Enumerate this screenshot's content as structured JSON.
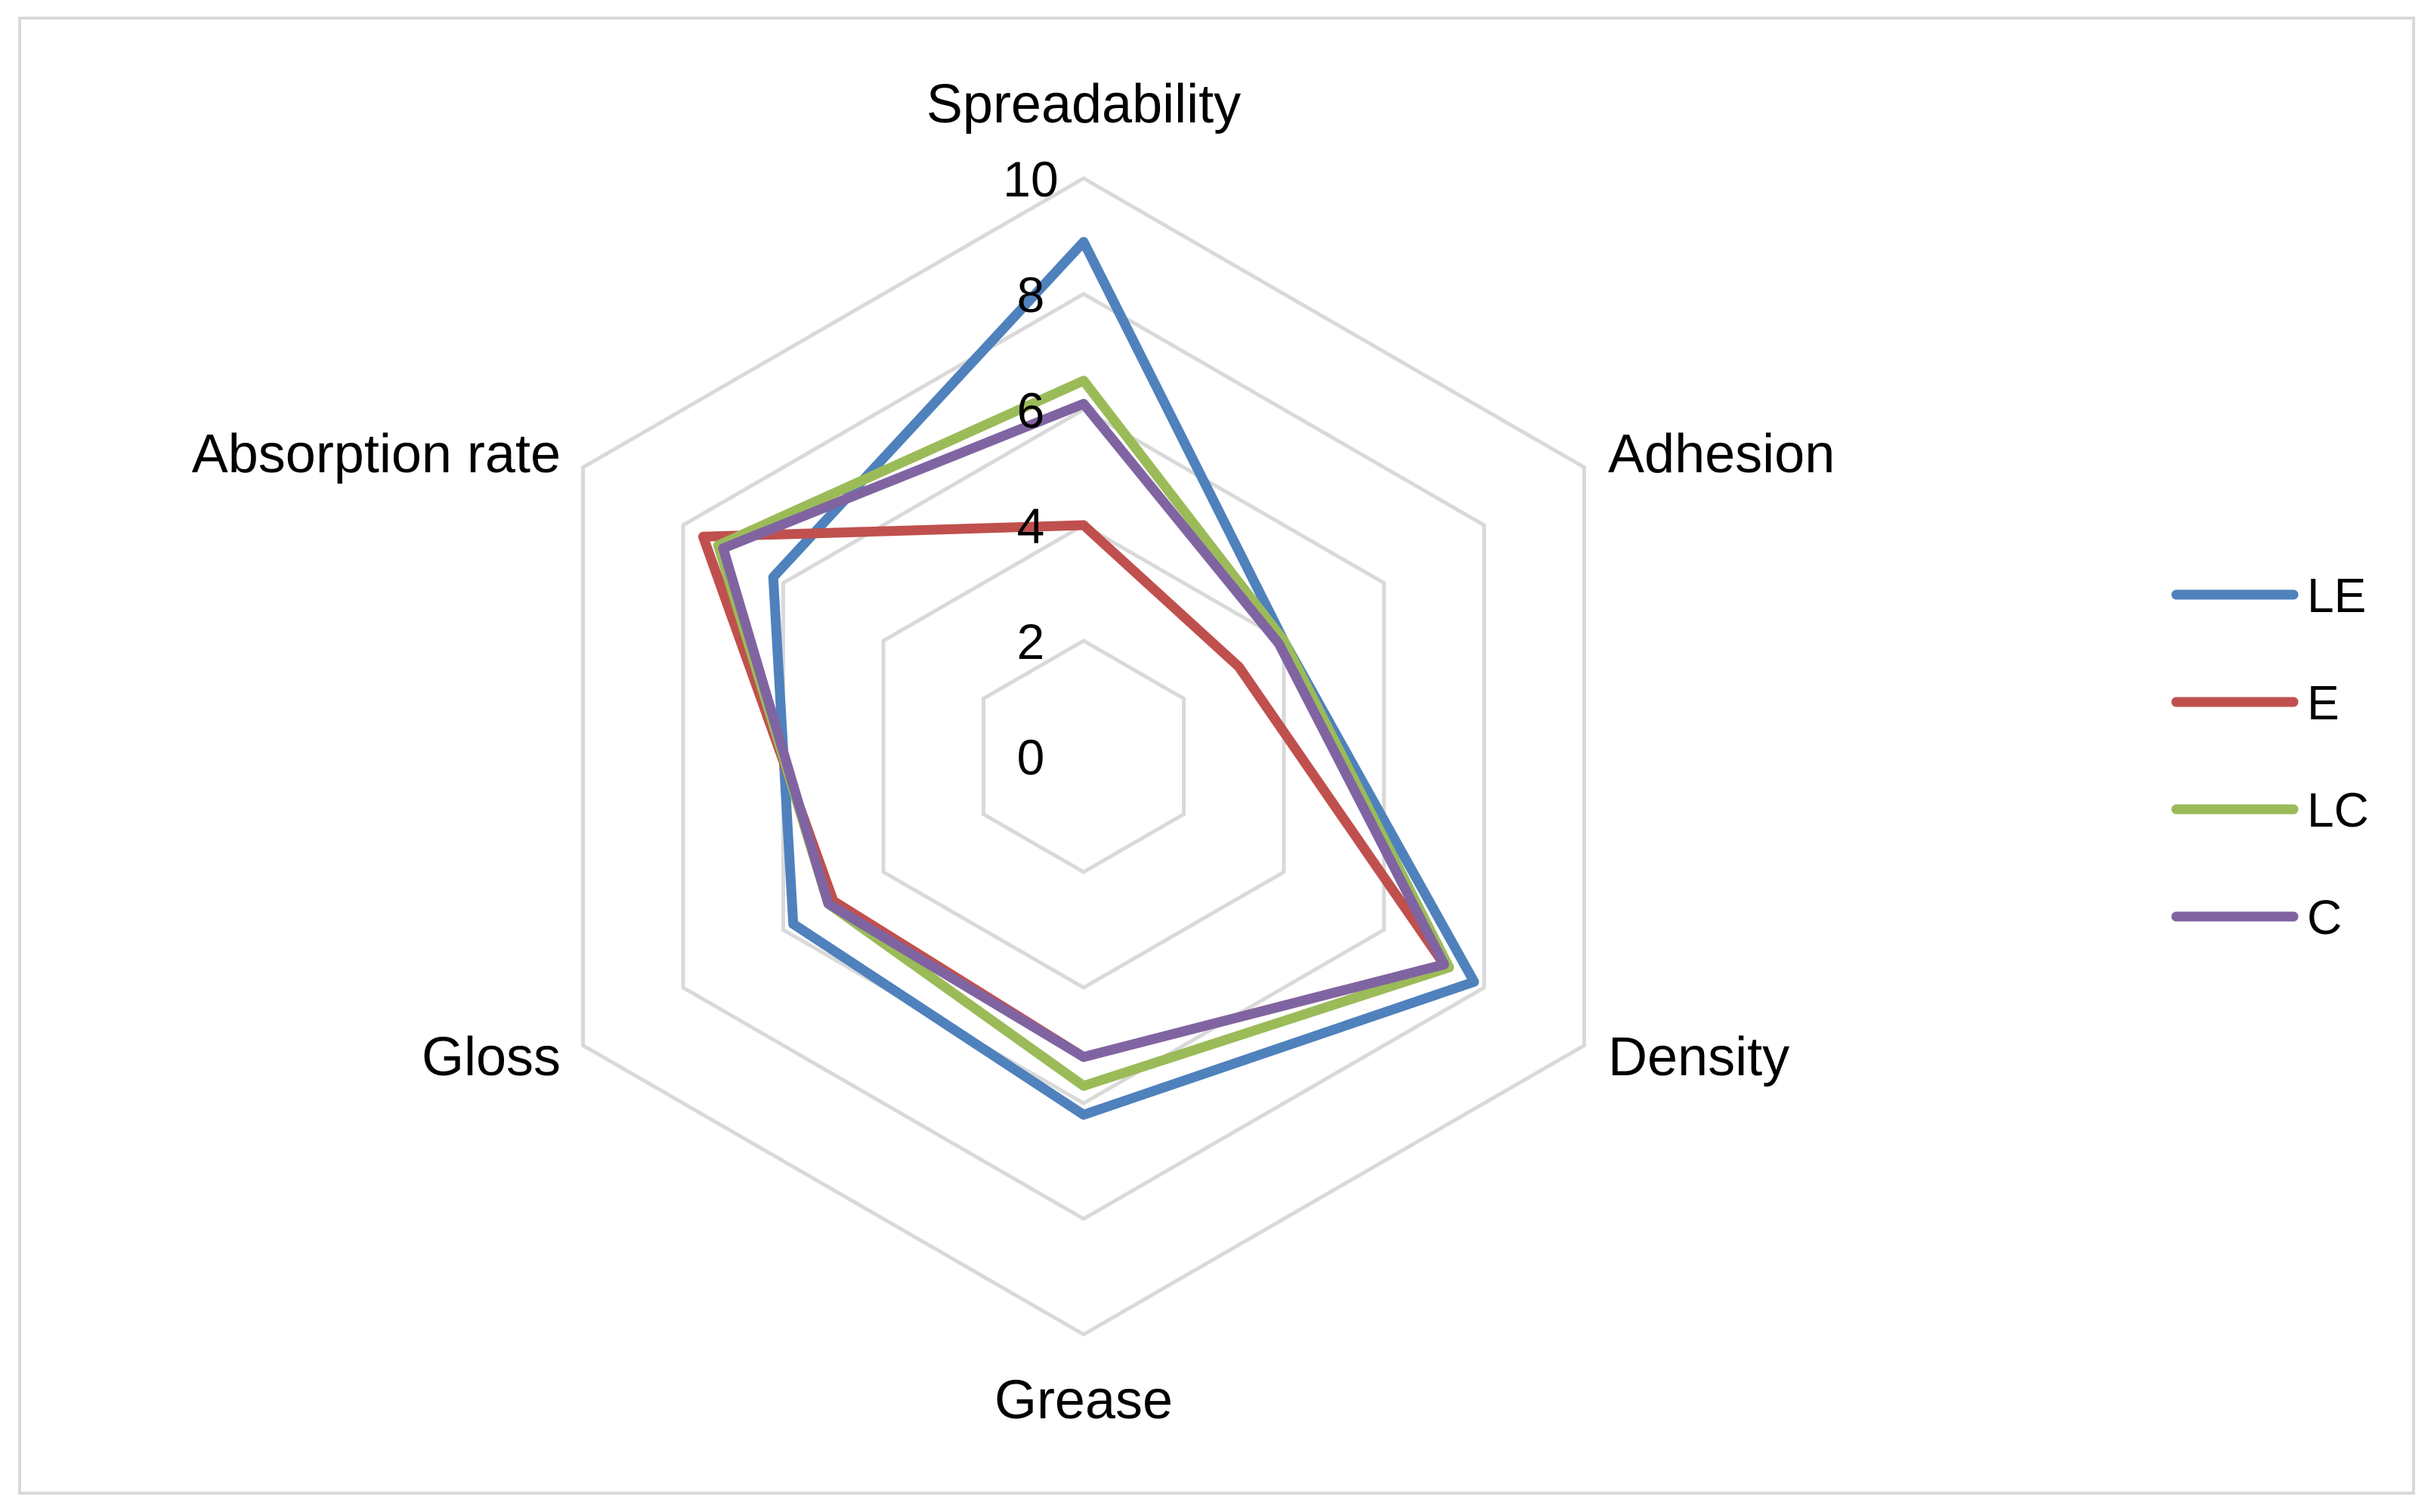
{
  "chart_data": {
    "type": "radar",
    "title": "",
    "axes": [
      "Spreadability",
      "Adhesion",
      "Density",
      "Grease",
      "Gloss",
      "Absorption rate"
    ],
    "rmin": 0,
    "rmax": 10,
    "ticks": [
      "0",
      "2",
      "4",
      "6",
      "8",
      "10"
    ],
    "tick_values": [
      0,
      2,
      4,
      6,
      8,
      10
    ],
    "grid": true,
    "legend_position": "right",
    "series": [
      {
        "name": "LE",
        "color": "#4f81bd",
        "values": [
          8.9,
          4.0,
          7.8,
          6.2,
          5.8,
          6.2
        ]
      },
      {
        "name": "E",
        "color": "#c0504d",
        "values": [
          4.0,
          3.1,
          7.2,
          5.2,
          5.0,
          7.6
        ]
      },
      {
        "name": "LC",
        "color": "#9bbb59",
        "values": [
          6.5,
          4.0,
          7.3,
          5.7,
          5.1,
          7.3
        ]
      },
      {
        "name": "C",
        "color": "#8064a2",
        "values": [
          6.1,
          3.9,
          7.2,
          5.2,
          5.1,
          7.2
        ]
      }
    ]
  }
}
